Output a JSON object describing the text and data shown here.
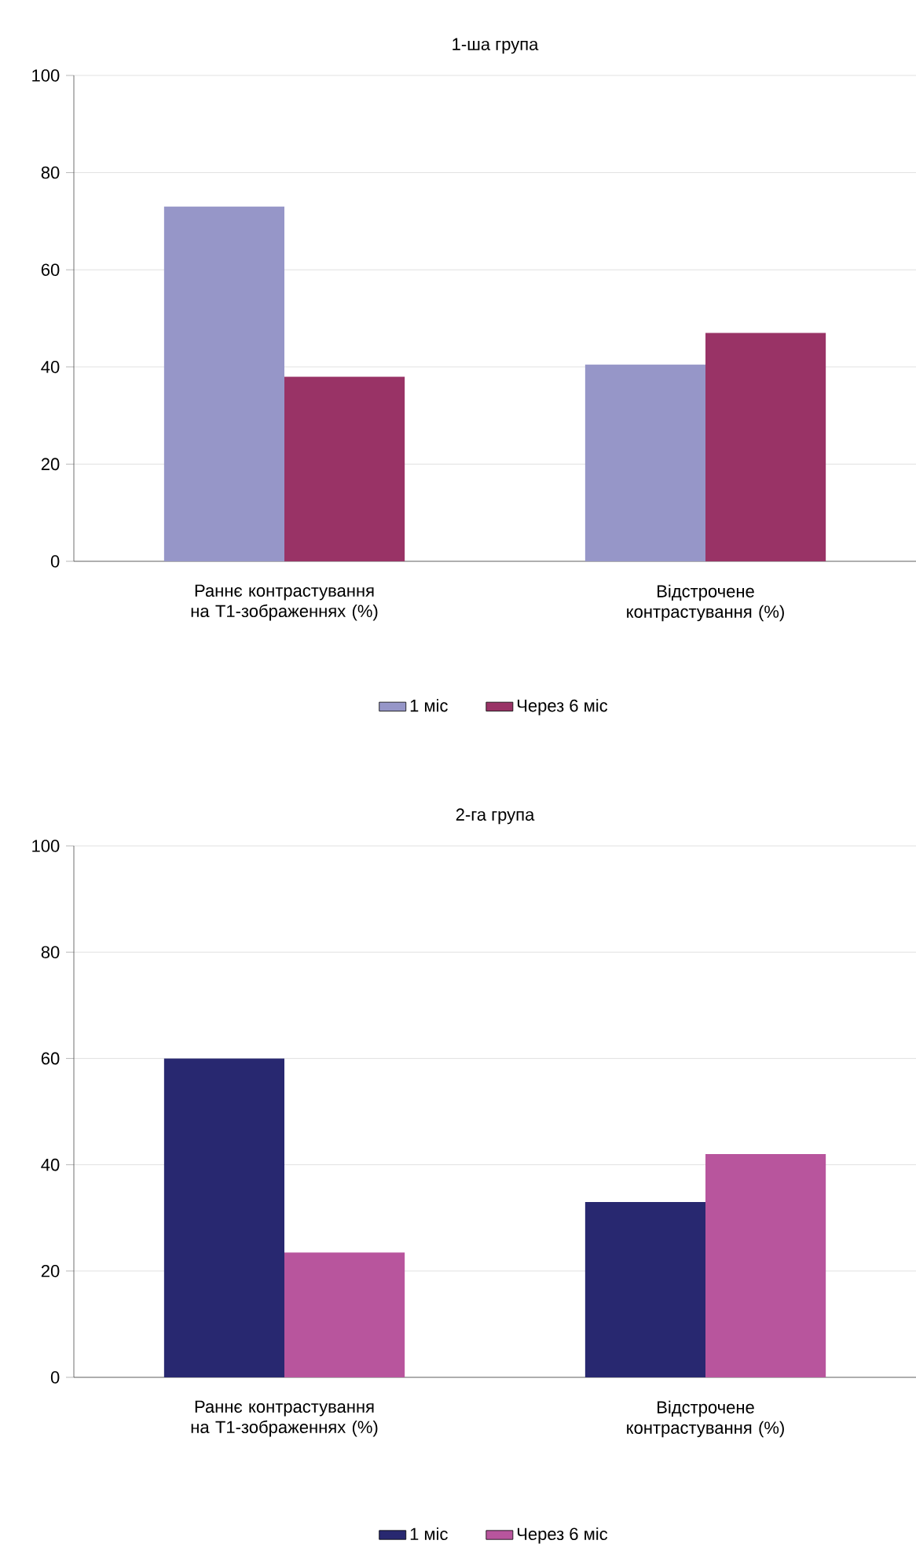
{
  "chart_data": [
    {
      "type": "bar",
      "title": "1-ша група",
      "categories": [
        "Раннє контрастування на Т1-зображеннях (%)",
        "Відстрочене контрастування (%)"
      ],
      "series": [
        {
          "name": "1 міс",
          "color": "#9696c8",
          "values": [
            73,
            40.5
          ]
        },
        {
          "name": "Через 6 міс",
          "color": "#993366",
          "values": [
            38,
            47
          ]
        }
      ],
      "ylim": [
        0,
        100
      ],
      "yticks": [
        0,
        20,
        40,
        60,
        80,
        100
      ],
      "grid": "y",
      "legend": "bottom"
    },
    {
      "type": "bar",
      "title": "2-га група",
      "categories": [
        "Раннє контрастування на Т1-зображеннях (%)",
        "Відстрочене контрастування (%)"
      ],
      "series": [
        {
          "name": "1 міс",
          "color": "#282870",
          "values": [
            60,
            33
          ]
        },
        {
          "name": "Через 6 міс",
          "color": "#b8559d",
          "values": [
            23.5,
            42
          ]
        }
      ],
      "ylim": [
        0,
        100
      ],
      "yticks": [
        0,
        20,
        40,
        60,
        80,
        100
      ],
      "grid": "y",
      "legend": "bottom"
    }
  ]
}
